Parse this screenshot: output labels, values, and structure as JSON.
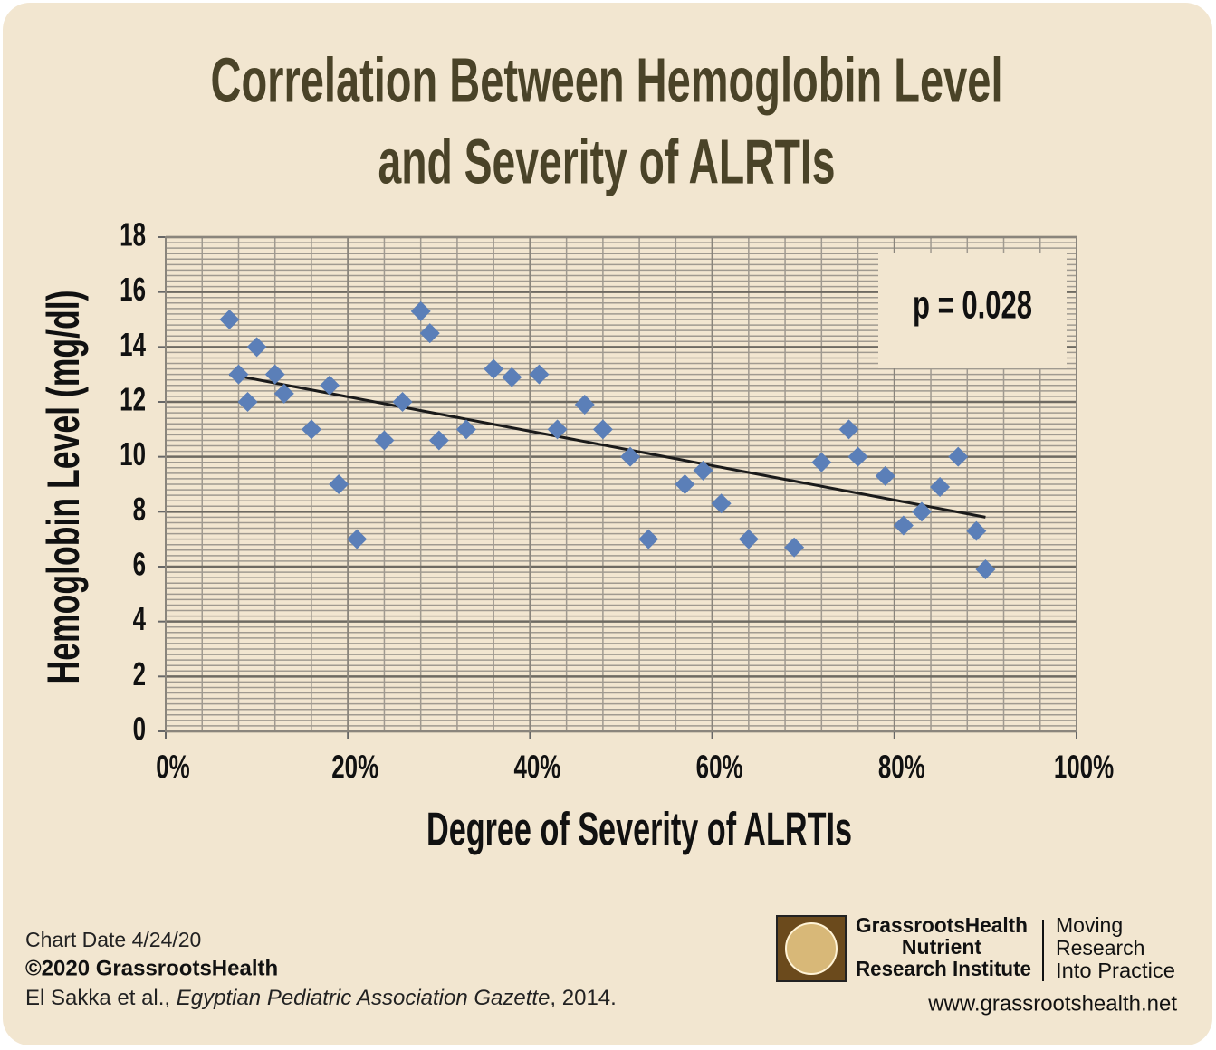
{
  "chart_data": {
    "type": "scatter",
    "title": [
      "Correlation Between Hemoglobin Level",
      "and Severity of ALRTIs"
    ],
    "xlabel": "Degree of Severity of ALRTIs",
    "ylabel": "Hemoglobin Level (mg/dl)",
    "annotation": "p = 0.028",
    "x": [
      7,
      8,
      9,
      10,
      12,
      13,
      16,
      18,
      19,
      21,
      24,
      26,
      28,
      29,
      30,
      33,
      36,
      38,
      41,
      43,
      46,
      48,
      51,
      53,
      57,
      59,
      61,
      64,
      69,
      72,
      75,
      76,
      79,
      81,
      83,
      85,
      87,
      89,
      90
    ],
    "values": [
      15,
      13,
      12,
      14,
      13,
      12.3,
      11,
      12.6,
      9,
      7,
      10.6,
      12,
      15.3,
      14.5,
      10.6,
      11,
      13.2,
      12.9,
      13,
      11,
      11.9,
      11,
      10,
      7,
      9,
      9.5,
      8.3,
      7,
      6.7,
      9.8,
      11,
      10,
      9.3,
      7.5,
      8,
      8.9,
      10,
      7.3,
      5.9
    ],
    "color": "#5b7fb8",
    "trendline": {
      "x": [
        7,
        90
      ],
      "y": [
        13,
        7.8
      ],
      "color": "#1a1a1a"
    },
    "xlim": [
      0,
      100
    ],
    "xticks": [
      {
        "value": 0,
        "label": "0%"
      },
      {
        "value": 20,
        "label": "20%"
      },
      {
        "value": 40,
        "label": "40%"
      },
      {
        "value": 60,
        "label": "60%"
      },
      {
        "value": 80,
        "label": "80%"
      },
      {
        "value": 100,
        "label": "100%"
      }
    ],
    "ylim": [
      0,
      18
    ],
    "yticks": [
      0,
      2,
      4,
      6,
      8,
      10,
      12,
      14,
      16,
      18
    ],
    "grid": true
  },
  "footer": {
    "date": "Chart Date 4/24/20",
    "copyright": "©2020 GrassrootsHealth",
    "citation": [
      "El Sakka et al., ",
      "Egyptian Pediatric Association Gazette",
      ", 2014."
    ]
  },
  "logo": {
    "name": [
      "GrassrootsHealth",
      "Nutrient",
      "Research Institute"
    ],
    "tagline": [
      "Moving",
      "Research",
      "Into Practice"
    ],
    "url": "www.grassrootshealth.net"
  }
}
